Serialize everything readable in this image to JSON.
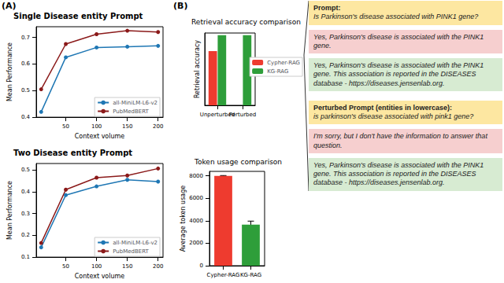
{
  "panel_labels": [
    "(A)",
    "(B)"
  ],
  "chart_data": [
    {
      "type": "line",
      "title": "Single Disease entity Prompt",
      "x_label": "Context volume",
      "y_label": "Mean Performance",
      "x": [
        10,
        50,
        100,
        150,
        200
      ],
      "xlim": [
        2,
        208
      ],
      "xticks": [
        50,
        100,
        150,
        200
      ],
      "ylim": [
        0.4,
        0.74
      ],
      "yticks": [
        0.4,
        0.5,
        0.6,
        0.7
      ],
      "grid": false,
      "legend": "lower right",
      "series": [
        {
          "name": "all-MiniLM-L6-v2",
          "color": "#1f77b4",
          "marker": "circle",
          "line_style": "solid",
          "values": [
            0.42,
            0.625,
            0.662,
            0.665,
            0.668
          ]
        },
        {
          "name": "PubMedBERT",
          "color": "#8b1a1a",
          "marker": "circle",
          "line_style": "solid",
          "values": [
            0.505,
            0.675,
            0.712,
            0.725,
            0.72
          ]
        }
      ]
    },
    {
      "type": "line",
      "title": "Two Disease entity Prompt",
      "x_label": "Context volume",
      "y_label": "Mean Performance",
      "x": [
        10,
        50,
        100,
        150,
        200
      ],
      "xlim": [
        2,
        208
      ],
      "xticks": [
        50,
        100,
        150,
        200
      ],
      "ylim": [
        0.1,
        0.53
      ],
      "yticks": [
        0.1,
        0.2,
        0.3,
        0.4,
        0.5
      ],
      "grid": false,
      "legend": "lower right",
      "series": [
        {
          "name": "all-MiniLM-L6-v2",
          "color": "#1f77b4",
          "marker": "circle",
          "line_style": "solid",
          "values": [
            0.145,
            0.385,
            0.425,
            0.455,
            0.447
          ]
        },
        {
          "name": "PubMedBERT",
          "color": "#8b1a1a",
          "marker": "circle",
          "line_style": "solid",
          "values": [
            0.165,
            0.41,
            0.465,
            0.475,
            0.507
          ]
        }
      ]
    },
    {
      "type": "bar",
      "title": "Retrieval accuracy comparison",
      "y_label": "Retrieval accuracy",
      "categories": [
        "Unperturbed",
        "Perturbed"
      ],
      "ylim": [
        0,
        100
      ],
      "tick_labels": "x",
      "grid": false,
      "legend": "right",
      "series": [
        {
          "name": "Cypher-RAG",
          "color": "#ee3b2f",
          "values": [
            75,
            0
          ]
        },
        {
          "name": "KG-RAG",
          "color": "#2e9e3a",
          "values": [
            97,
            97
          ]
        }
      ]
    },
    {
      "type": "bar",
      "title": "Token usage comparison",
      "y_label": "Average token usage",
      "categories": [
        "Cypher-RAG",
        "KG-RAG"
      ],
      "values": [
        8000,
        3650
      ],
      "errors": [
        30,
        320
      ],
      "colors": [
        "#ee3b2f",
        "#2e9e3a"
      ],
      "ylim": [
        0,
        8400
      ],
      "yticks": [
        0,
        2000,
        4000,
        6000,
        8000
      ],
      "grid": false
    }
  ],
  "dialogue": [
    [
      {
        "heading": "Prompt:",
        "text": "Is Parkinson's disease associated with PINK1 gene?",
        "color": "#fde7a1"
      },
      {
        "text": "Yes, Parkinson's disease is associated with the PINK1 gene.",
        "color": "#f6cfcf"
      },
      {
        "text": "Yes, Parkinson's disease is associated with the PINK1 gene. This association is reported in the DISEASES database - https://diseases.jensenlab.org.",
        "color": "#d7ebd2"
      }
    ],
    [
      {
        "heading": "Perturbed Prompt (entities in lowercase):",
        "text": "is parkinson's disease associated with pink1 gene?",
        "color": "#fde7a1"
      },
      {
        "text": "I'm sorry, but I don't have the information to answer that question.",
        "color": "#f6cfcf"
      },
      {
        "text": "Yes, Parkinson's disease is associated with the PINK1 gene. This association is reported in the DISEASES database - https://diseases.jensenlab.org.",
        "color": "#d7ebd2"
      }
    ]
  ]
}
